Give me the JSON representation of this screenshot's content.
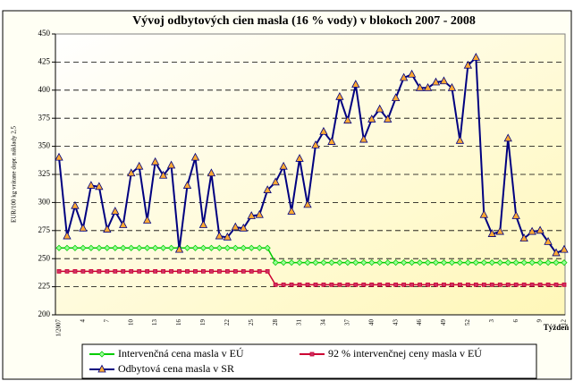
{
  "chart_data": {
    "type": "line",
    "title": "Vývoj odbytových cien masla (16 % vody) v blokoch 2007 - 2008",
    "y_label": "EUR/100 kg vrátane dopr. náklady 2,5",
    "x_label": "Týždeň",
    "categories": [
      "1/2007",
      null,
      null,
      "4",
      null,
      null,
      "7",
      null,
      null,
      "10",
      null,
      null,
      "13",
      null,
      null,
      "16",
      null,
      null,
      "19",
      null,
      null,
      "22",
      null,
      null,
      "25",
      null,
      null,
      "28",
      null,
      null,
      "31",
      null,
      null,
      "34",
      null,
      null,
      "37",
      null,
      null,
      "40",
      null,
      null,
      "43",
      null,
      null,
      "46",
      null,
      null,
      "49",
      null,
      null,
      "52",
      null,
      null,
      "3",
      null,
      null,
      "6",
      null,
      null,
      "9",
      null,
      null,
      "12"
    ],
    "series": [
      {
        "name": "Intervenčná cena masla v EÚ",
        "color": "#00cc00",
        "marker": "diamond",
        "marker_fill": "#99ff99",
        "values": [
          259.5,
          259.5,
          259.5,
          259.5,
          259.5,
          259.5,
          259.5,
          259.5,
          259.5,
          259.5,
          259.5,
          259.5,
          259.5,
          259.5,
          259.5,
          259.5,
          259.5,
          259.5,
          259.5,
          259.5,
          259.5,
          259.5,
          259.5,
          259.5,
          259.5,
          259.5,
          259.5,
          246.5,
          246.5,
          246.5,
          246.5,
          246.5,
          246.5,
          246.5,
          246.5,
          246.5,
          246.5,
          246.5,
          246.5,
          246.5,
          246.5,
          246.5,
          246.5,
          246.5,
          246.5,
          246.5,
          246.5,
          246.5,
          246.5,
          246.5,
          246.5,
          246.5,
          246.5,
          246.5,
          246.5,
          246.5,
          246.5,
          246.5,
          246.5,
          246.5,
          246.5,
          246.5,
          246.5,
          246.5
        ]
      },
      {
        "name": "92 % intervenčnej ceny masla v EÚ",
        "color": "#cc0033",
        "marker": "square",
        "marker_fill": "#cc3366",
        "values": [
          238.7,
          238.7,
          238.7,
          238.7,
          238.7,
          238.7,
          238.7,
          238.7,
          238.7,
          238.7,
          238.7,
          238.7,
          238.7,
          238.7,
          238.7,
          238.7,
          238.7,
          238.7,
          238.7,
          238.7,
          238.7,
          238.7,
          238.7,
          238.7,
          238.7,
          238.7,
          238.7,
          226.8,
          226.8,
          226.8,
          226.8,
          226.8,
          226.8,
          226.8,
          226.8,
          226.8,
          226.8,
          226.8,
          226.8,
          226.8,
          226.8,
          226.8,
          226.8,
          226.8,
          226.8,
          226.8,
          226.8,
          226.8,
          226.8,
          226.8,
          226.8,
          226.8,
          226.8,
          226.8,
          226.8,
          226.8,
          226.8,
          226.8,
          226.8,
          226.8,
          226.8,
          226.8,
          226.8,
          226.8
        ]
      },
      {
        "name": "Odbytová cena masla v SR",
        "color": "#000080",
        "marker": "triangle",
        "marker_fill": "#ffaa33",
        "values": [
          340,
          270,
          297,
          277,
          315,
          314,
          276,
          292,
          280,
          326,
          332,
          284,
          336,
          324,
          333,
          258,
          315,
          340,
          280,
          326,
          270,
          269,
          278,
          277,
          288,
          289,
          311,
          318,
          332,
          292,
          339,
          298,
          351,
          363,
          354,
          394,
          373,
          405,
          356,
          374,
          383,
          374,
          393,
          411,
          414,
          402,
          402,
          407,
          408,
          402,
          355,
          422,
          429,
          289,
          272,
          274,
          357,
          288,
          268,
          274,
          275,
          265,
          255,
          258
        ]
      }
    ],
    "ylim": [
      200,
      450
    ],
    "yticks": [
      200,
      225,
      250,
      275,
      300,
      325,
      350,
      375,
      400,
      425,
      450
    ],
    "grid": true,
    "legend": "bottom"
  }
}
